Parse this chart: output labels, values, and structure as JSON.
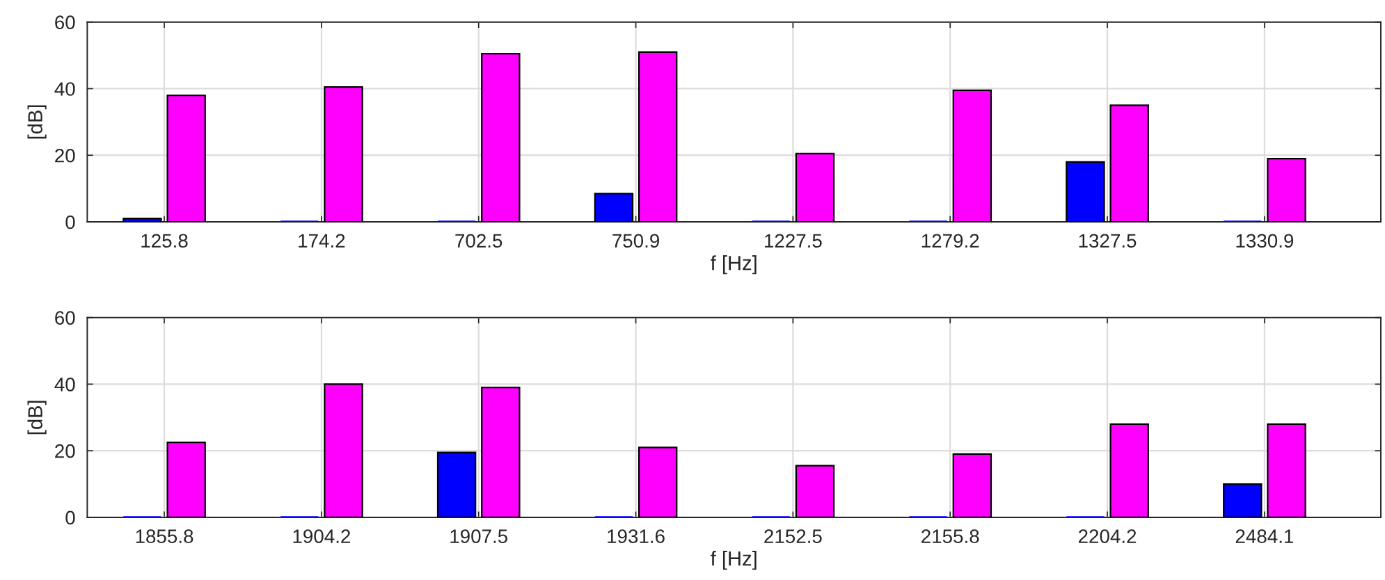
{
  "chart_data": [
    {
      "type": "bar",
      "categories": [
        "125.8",
        "174.2",
        "702.5",
        "750.9",
        "1227.5",
        "1279.2",
        "1327.5",
        "1330.9"
      ],
      "series": [
        {
          "color": "#0000ff",
          "values": [
            1,
            0,
            0,
            8.5,
            0,
            0,
            18,
            0
          ]
        },
        {
          "color": "#ff00ff",
          "values": [
            38,
            40.5,
            50.5,
            51,
            20.5,
            39.5,
            35,
            19
          ]
        }
      ],
      "xlabel": "f [Hz]",
      "ylabel": "[dB]",
      "ylim": [
        0,
        60
      ],
      "yticks": [
        0,
        20,
        40,
        60
      ],
      "grid": true
    },
    {
      "type": "bar",
      "categories": [
        "1855.8",
        "1904.2",
        "1907.5",
        "1931.6",
        "2152.5",
        "2155.8",
        "2204.2",
        "2484.1"
      ],
      "series": [
        {
          "color": "#0000ff",
          "values": [
            0,
            0,
            19.5,
            0,
            0,
            0,
            0,
            10
          ]
        },
        {
          "color": "#ff00ff",
          "values": [
            22.5,
            40,
            39,
            21,
            15.5,
            19,
            28,
            28
          ]
        }
      ],
      "xlabel": "f [Hz]",
      "ylabel": "[dB]",
      "ylim": [
        0,
        60
      ],
      "yticks": [
        0,
        20,
        40,
        60
      ],
      "grid": true
    }
  ]
}
